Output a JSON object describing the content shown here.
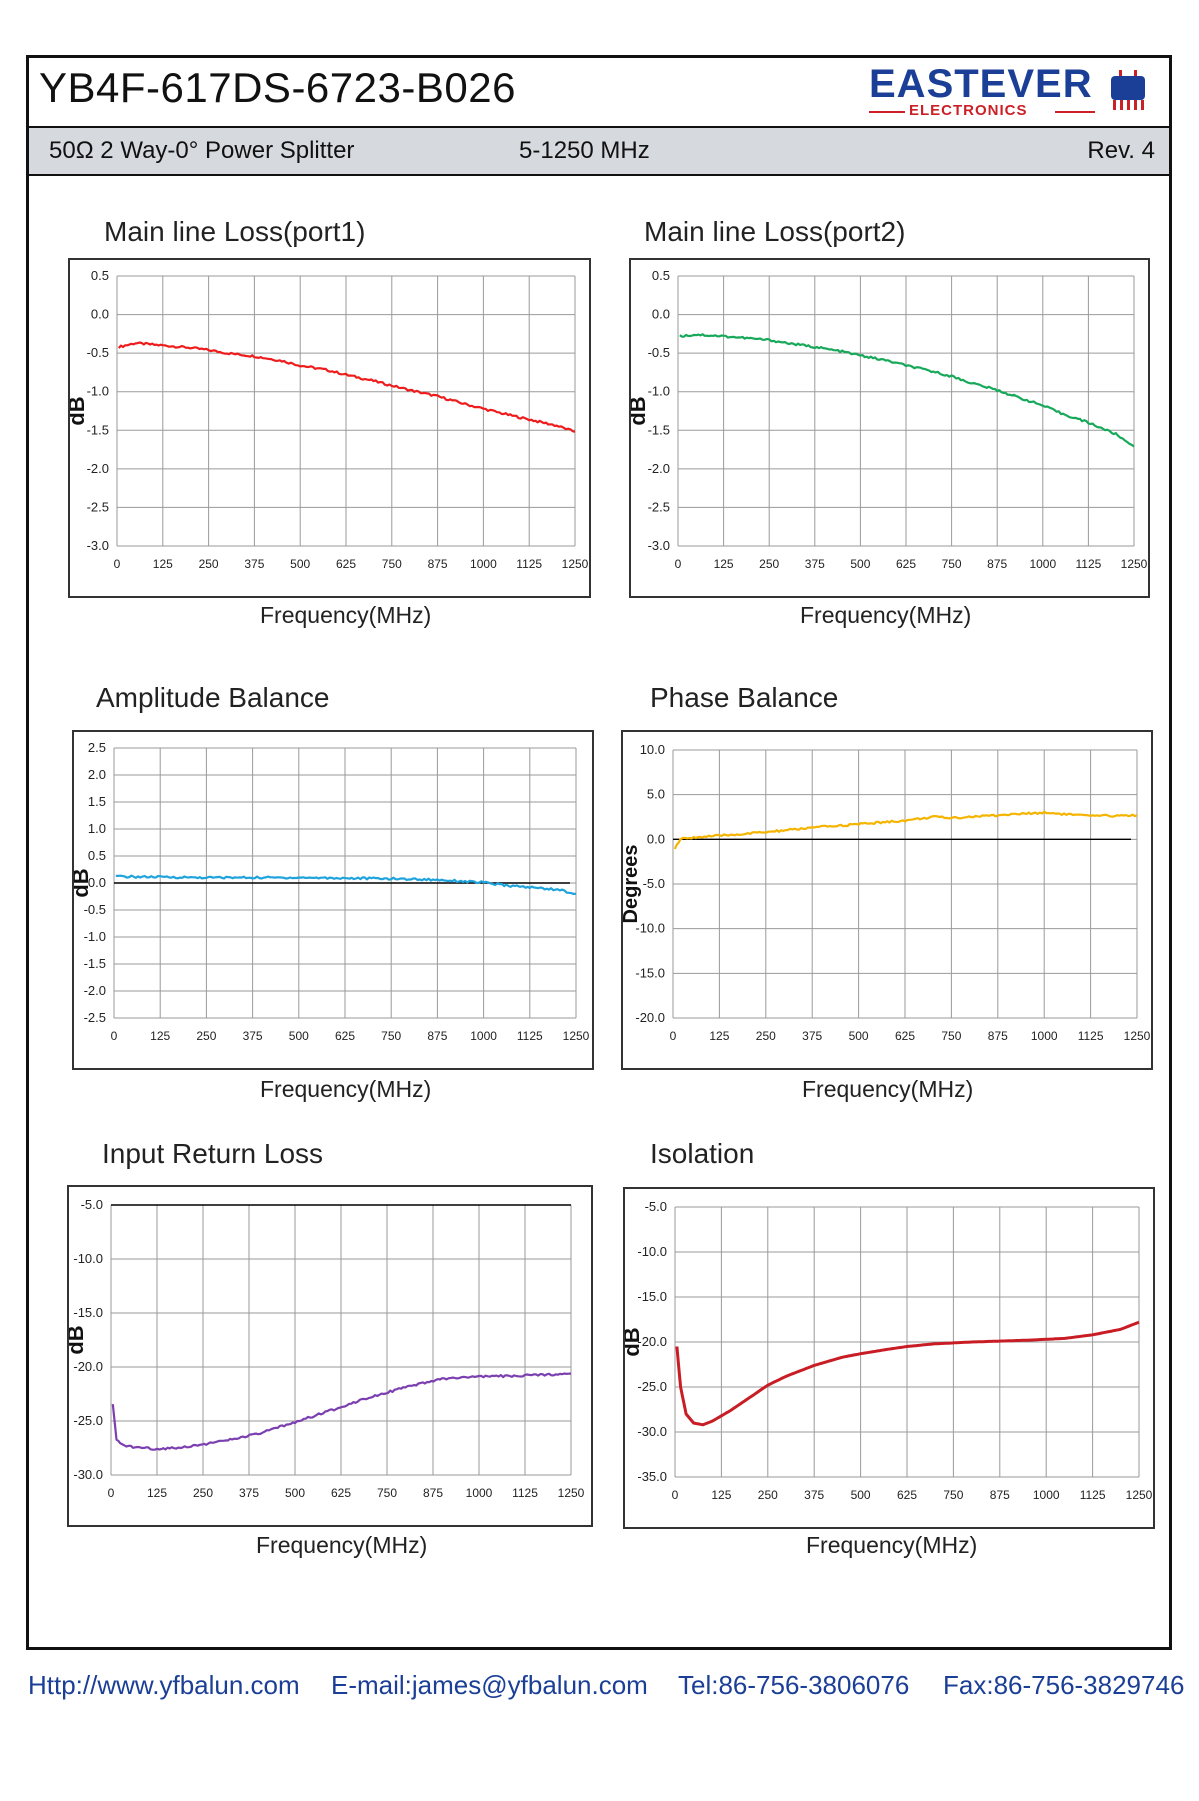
{
  "header": {
    "part_number": "YB4F-617DS-6723-B026",
    "logo_main": "EASTEVER",
    "logo_sub": "ELECTRONICS",
    "description": "50Ω 2 Way-0° Power Splitter",
    "frequency_range": "5-1250 MHz",
    "revision": "Rev. 4"
  },
  "colors": {
    "brand_blue": "#1b3f96",
    "brand_red": "#cc2027",
    "grid": "#9a9a9a"
  },
  "footer": {
    "url": "Http://www.yfbalun.com",
    "email": "E-mail:james@yfbalun.com",
    "tel": "Tel:86-756-3806076",
    "fax": "Fax:86-756-3829746"
  },
  "chart_data": [
    {
      "type": "line",
      "title": "Main line Loss(port1)",
      "xlabel": "Frequency(MHz)",
      "ylabel": "dB",
      "xlim": [
        0,
        1250
      ],
      "ylim": [
        -3.0,
        0.5
      ],
      "grid": true,
      "x_ticks": [
        "0",
        "125",
        "250",
        "375",
        "500",
        "625",
        "750",
        "875",
        "1000",
        "1125",
        "1250"
      ],
      "y_ticks": [
        "0.5",
        "0.0",
        "-0.5",
        "-1.0",
        "-1.5",
        "-2.0",
        "-2.5",
        "-3.0"
      ],
      "series": [
        {
          "color": "#ee1c1c",
          "x": [
            5,
            50,
            125,
            200,
            250,
            300,
            375,
            450,
            500,
            575,
            625,
            700,
            750,
            800,
            875,
            950,
            1000,
            1050,
            1125,
            1200,
            1250
          ],
          "y": [
            -0.42,
            -0.37,
            -0.4,
            -0.43,
            -0.46,
            -0.5,
            -0.54,
            -0.6,
            -0.66,
            -0.72,
            -0.78,
            -0.86,
            -0.92,
            -0.98,
            -1.06,
            -1.16,
            -1.22,
            -1.28,
            -1.36,
            -1.44,
            -1.52
          ]
        }
      ]
    },
    {
      "type": "line",
      "title": "Main line Loss(port2)",
      "xlabel": "Frequency(MHz)",
      "ylabel": "dB",
      "xlim": [
        0,
        1250
      ],
      "ylim": [
        -3.0,
        0.5
      ],
      "grid": true,
      "x_ticks": [
        "0",
        "125",
        "250",
        "375",
        "500",
        "625",
        "750",
        "875",
        "1000",
        "1125",
        "1250"
      ],
      "y_ticks": [
        "0.5",
        "0.0",
        "-0.5",
        "-1.0",
        "-1.5",
        "-2.0",
        "-2.5",
        "-3.0"
      ],
      "series": [
        {
          "color": "#17a85a",
          "x": [
            5,
            50,
            125,
            200,
            250,
            300,
            375,
            450,
            500,
            575,
            625,
            700,
            750,
            800,
            875,
            950,
            1000,
            1050,
            1125,
            1200,
            1250
          ],
          "y": [
            -0.28,
            -0.26,
            -0.28,
            -0.31,
            -0.33,
            -0.37,
            -0.42,
            -0.48,
            -0.53,
            -0.6,
            -0.66,
            -0.74,
            -0.8,
            -0.88,
            -0.98,
            -1.1,
            -1.18,
            -1.28,
            -1.4,
            -1.55,
            -1.71
          ]
        }
      ]
    },
    {
      "type": "line",
      "title": "Amplitude Balance",
      "xlabel": "Frequency(MHz)",
      "ylabel": "dB",
      "xlim": [
        0,
        1250
      ],
      "ylim": [
        -2.5,
        2.5
      ],
      "grid": true,
      "x_ticks": [
        "0",
        "125",
        "250",
        "375",
        "500",
        "625",
        "750",
        "875",
        "1000",
        "1125",
        "1250"
      ],
      "y_ticks": [
        "2.5",
        "2.0",
        "1.5",
        "1.0",
        "0.5",
        "0.0",
        "-0.5",
        "-1.0",
        "-1.5",
        "-2.0",
        "-2.5"
      ],
      "series": [
        {
          "color": "#1fa3dc",
          "x": [
            5,
            125,
            250,
            375,
            500,
            625,
            750,
            875,
            950,
            1000,
            1050,
            1125,
            1200,
            1250
          ],
          "y": [
            0.12,
            0.11,
            0.1,
            0.1,
            0.1,
            0.09,
            0.08,
            0.06,
            0.03,
            0.01,
            -0.04,
            -0.08,
            -0.12,
            -0.2
          ]
        }
      ]
    },
    {
      "type": "line",
      "title": "Phase  Balance",
      "xlabel": "Frequency(MHz)",
      "ylabel": "Degrees",
      "xlim": [
        0,
        1250
      ],
      "ylim": [
        -20.0,
        10.0
      ],
      "grid": true,
      "x_ticks": [
        "0",
        "125",
        "250",
        "375",
        "500",
        "625",
        "750",
        "875",
        "1000",
        "1125",
        "1250"
      ],
      "y_ticks": [
        "10.0",
        "5.0",
        "0.0",
        "-5.0",
        "-10.0",
        "-15.0",
        "-20.0"
      ],
      "series": [
        {
          "color": "#f5b400",
          "x": [
            5,
            20,
            50,
            125,
            250,
            375,
            500,
            625,
            700,
            750,
            875,
            1000,
            1125,
            1250
          ],
          "y": [
            -1.0,
            0.0,
            0.2,
            0.4,
            0.8,
            1.3,
            1.7,
            2.1,
            2.5,
            2.4,
            2.7,
            3.0,
            2.6,
            2.7
          ]
        }
      ]
    },
    {
      "type": "line",
      "title": "Input Return Loss",
      "xlabel": "Frequency(MHz)",
      "ylabel": "dB",
      "xlim": [
        0,
        1250
      ],
      "ylim": [
        -30.0,
        -5.0
      ],
      "grid": true,
      "x_ticks": [
        "0",
        "125",
        "250",
        "375",
        "500",
        "625",
        "750",
        "875",
        "1000",
        "1125",
        "1250"
      ],
      "y_ticks": [
        "-5.0",
        "-10.0",
        "-15.0",
        "-20.0",
        "-25.0",
        "-30.0"
      ],
      "series": [
        {
          "color": "#7c3fb0",
          "x": [
            5,
            15,
            30,
            60,
            125,
            200,
            300,
            400,
            500,
            600,
            700,
            800,
            900,
            1000,
            1125,
            1250
          ],
          "y": [
            -23.5,
            -26.8,
            -27.2,
            -27.4,
            -27.6,
            -27.4,
            -26.9,
            -26.2,
            -25.1,
            -24.0,
            -22.8,
            -21.9,
            -21.1,
            -20.9,
            -20.8,
            -20.6
          ]
        }
      ]
    },
    {
      "type": "line",
      "title": "Isolation",
      "xlabel": "Frequency(MHz)",
      "ylabel": "dB",
      "xlim": [
        0,
        1250
      ],
      "ylim": [
        -35.0,
        -5.0
      ],
      "grid": true,
      "x_ticks": [
        "0",
        "125",
        "250",
        "375",
        "500",
        "625",
        "750",
        "875",
        "1000",
        "1125",
        "1250"
      ],
      "y_ticks": [
        "-5.0",
        "-10.0",
        "-15.0",
        "-20.0",
        "-25.0",
        "-30.0",
        "-35.0"
      ],
      "series": [
        {
          "color": "#c81d25",
          "x": [
            5,
            15,
            30,
            50,
            75,
            100,
            150,
            200,
            250,
            300,
            375,
            450,
            500,
            575,
            625,
            700,
            800,
            875,
            950,
            1000,
            1050,
            1125,
            1200,
            1250
          ],
          "y": [
            -20.5,
            -25.0,
            -28.0,
            -29.0,
            -29.2,
            -28.8,
            -27.6,
            -26.2,
            -24.8,
            -23.8,
            -22.6,
            -21.7,
            -21.3,
            -20.8,
            -20.5,
            -20.2,
            -20.0,
            -19.9,
            -19.8,
            -19.7,
            -19.6,
            -19.2,
            -18.6,
            -17.8
          ]
        }
      ]
    }
  ]
}
